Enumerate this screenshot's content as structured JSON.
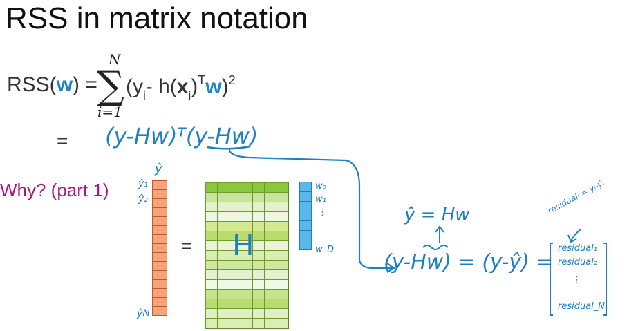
{
  "title": "RSS in matrix notation",
  "equation": {
    "lhs_prefix": "RSS(",
    "lhs_w": "w",
    "lhs_suffix": ") =",
    "sum_top": "N",
    "sum_bottom": "i=1",
    "term_open": "(y",
    "term_sub_i": "i",
    "term_mid": "- h(",
    "term_x": "x",
    "term_sub_i2": "i",
    "term_close": ")",
    "term_T": "T",
    "term_w": "w",
    "term_end": ")",
    "term_sq": "2"
  },
  "equals_sign": "=",
  "handwriting": {
    "main": "(y-Hw)ᵀ(y-Hw)",
    "yhat_eq": "ŷ = Hw",
    "line2": "(y-Hw) = (y-ŷ) =",
    "residual_note": "residualᵢ = yᵢ-ŷᵢ",
    "residual_1": "residual₁",
    "residual_2": "residual₂",
    "residual_dots": "⋮",
    "residual_N": "residual_N",
    "y_hat_top": "ŷ",
    "y_hat_1": "ŷ₁",
    "y_hat_2": "ŷ₂",
    "y_hat_N": "ŷN",
    "w_0": "w₀",
    "w_1": "w₁",
    "w_dots": "⋮",
    "w_D": "w_D",
    "H": "H"
  },
  "why_label": "Why? (part 1)",
  "colors": {
    "accent": "#1f84c6",
    "ink": "#1e7fc2",
    "why": "#b0157f",
    "y_vector": "#f4a37a",
    "w_vector": "#5bb7ea"
  },
  "matrix_rows_colors": [
    "#8cc63f",
    "#c8e39a",
    "#e3f1cc",
    "#eef7df",
    "#d5ea90",
    "#b9dc6d",
    "#e8f4d3",
    "#d9ecb3",
    "#cfe79f",
    "#e6f2cf",
    "#f0f8e6",
    "#c5e28f",
    "#b7db74",
    "#e0efc6",
    "#d9edb5"
  ]
}
